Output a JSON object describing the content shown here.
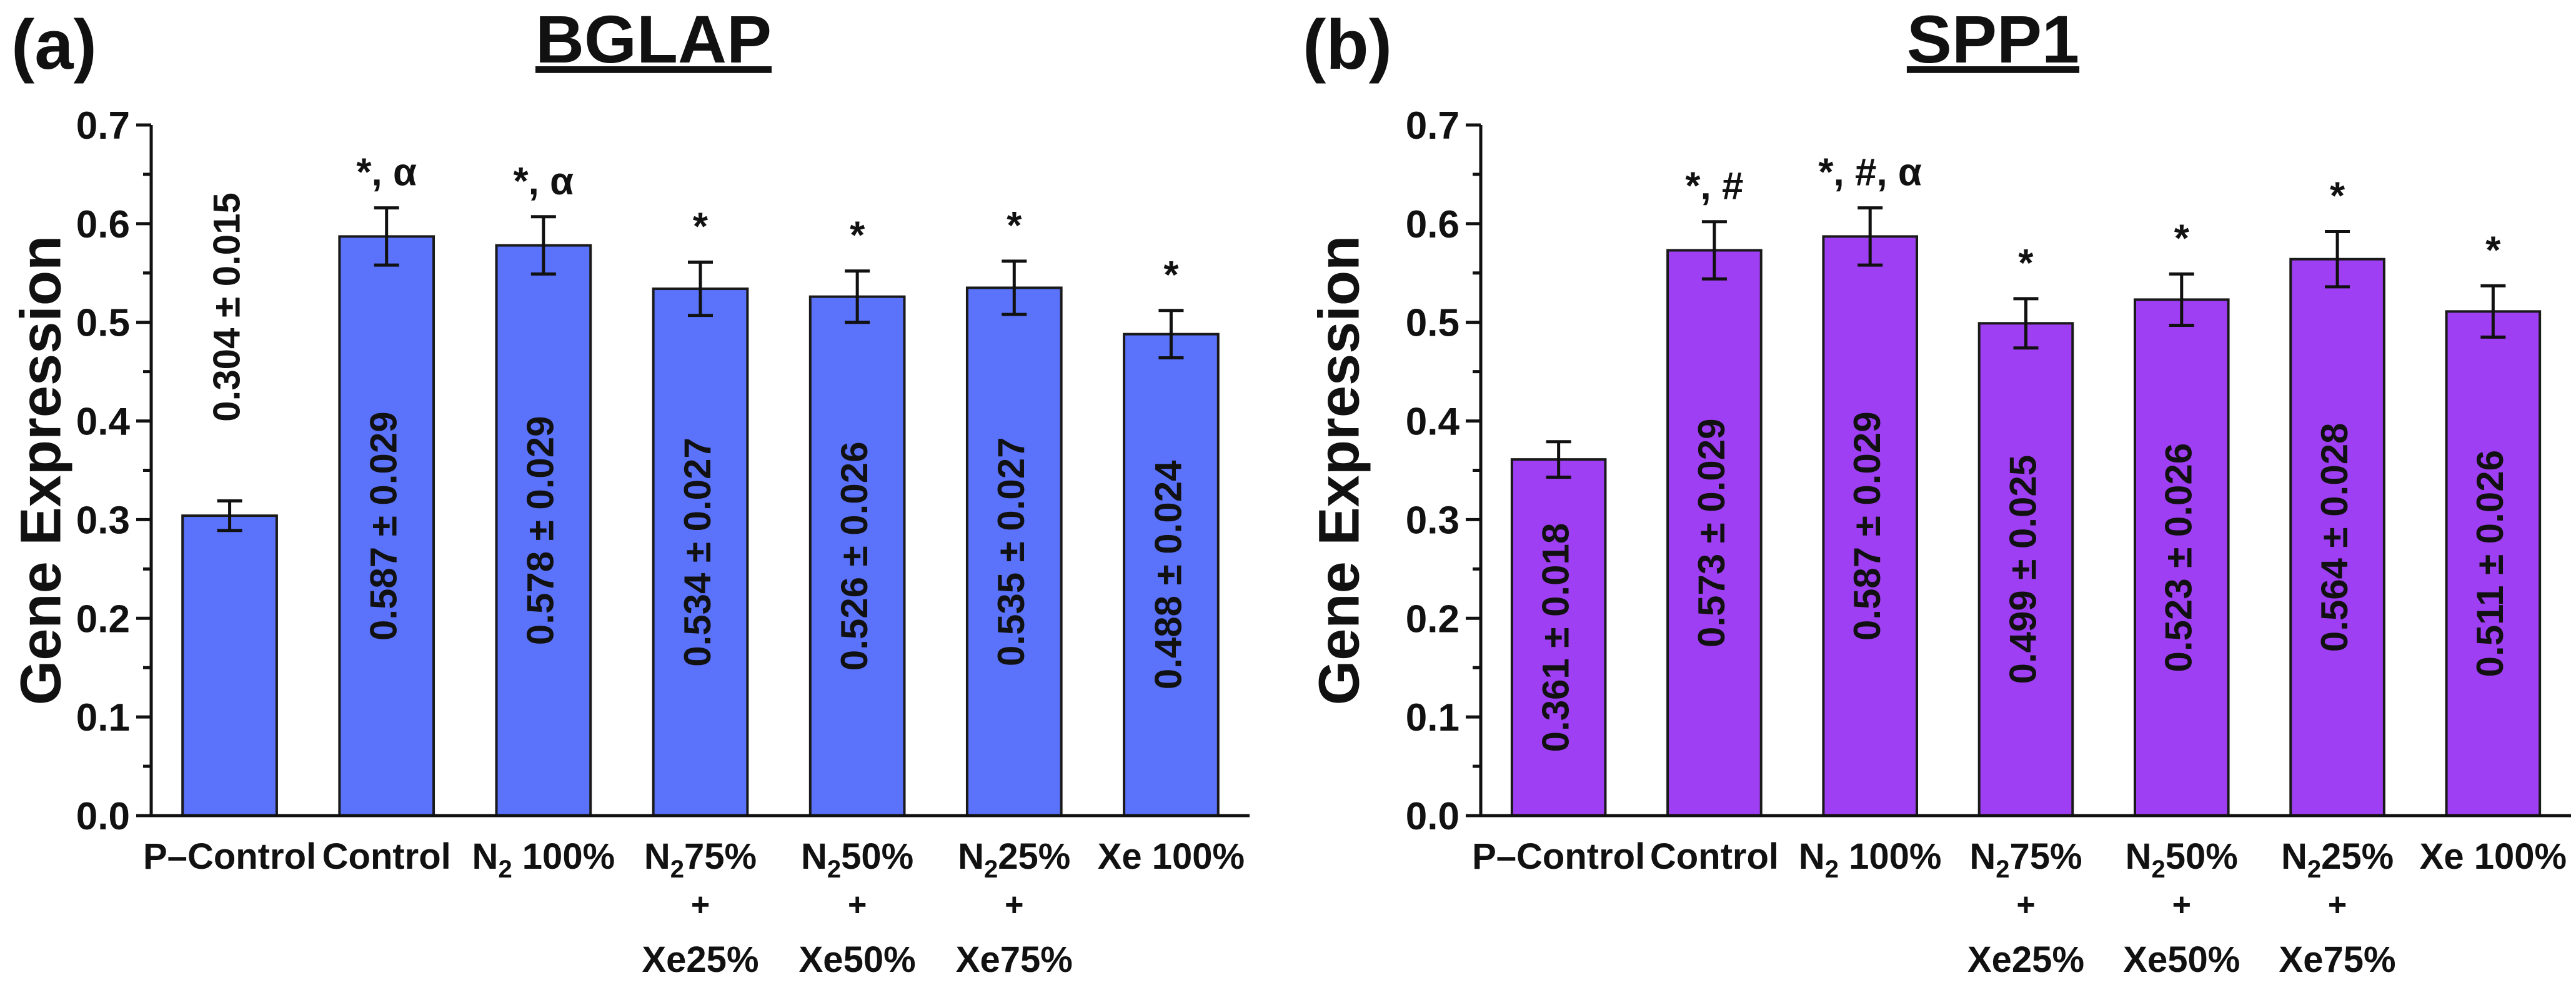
{
  "chart_data": [
    {
      "type": "bar",
      "panel_label": "(a)",
      "title": "BGLAP",
      "ylabel": "Gene Expression",
      "xlabel": "",
      "ylim": [
        0,
        0.7
      ],
      "yticks": [
        "0.0",
        "0.1",
        "0.2",
        "0.3",
        "0.4",
        "0.5",
        "0.6",
        "0.7"
      ],
      "bar_color": "#5b72fb",
      "categories": [
        {
          "main": "P–Control",
          "sub": "",
          "line2": "",
          "line3": ""
        },
        {
          "main": "Control",
          "sub": "",
          "line2": "",
          "line3": ""
        },
        {
          "main": "N",
          "sub": "2",
          "tail": " 100%",
          "line2": "",
          "line3": ""
        },
        {
          "main": "N",
          "sub": "2",
          "tail": "75%",
          "line2": "+",
          "line3": "Xe25%"
        },
        {
          "main": "N",
          "sub": "2",
          "tail": "50%",
          "line2": "+",
          "line3": "Xe50%"
        },
        {
          "main": "N",
          "sub": "2",
          "tail": "25%",
          "line2": "+",
          "line3": "Xe75%"
        },
        {
          "main": "Xe 100%",
          "sub": "",
          "line2": "",
          "line3": ""
        }
      ],
      "values": [
        0.304,
        0.587,
        0.578,
        0.534,
        0.526,
        0.535,
        0.488
      ],
      "errors": [
        0.015,
        0.029,
        0.029,
        0.027,
        0.026,
        0.027,
        0.024
      ],
      "value_labels": [
        "0.304 ± 0.015",
        "0.587 ± 0.029",
        "0.578 ± 0.029",
        "0.534 ± 0.027",
        "0.526 ± 0.026",
        "0.535 ± 0.027",
        "0.488 ± 0.024"
      ],
      "significance": [
        "",
        "*, α",
        "*, α",
        "*",
        "*",
        "*",
        "*"
      ]
    },
    {
      "type": "bar",
      "panel_label": "(b)",
      "title": "SPP1",
      "ylabel": "Gene Expression",
      "xlabel": "",
      "ylim": [
        0,
        0.7
      ],
      "yticks": [
        "0.0",
        "0.1",
        "0.2",
        "0.3",
        "0.4",
        "0.5",
        "0.6",
        "0.7"
      ],
      "bar_color": "#9f3ff3",
      "categories": [
        {
          "main": "P–Control",
          "sub": "",
          "line2": "",
          "line3": ""
        },
        {
          "main": "Control",
          "sub": "",
          "line2": "",
          "line3": ""
        },
        {
          "main": "N",
          "sub": "2",
          "tail": " 100%",
          "line2": "",
          "line3": ""
        },
        {
          "main": "N",
          "sub": "2",
          "tail": "75%",
          "line2": "+",
          "line3": "Xe25%"
        },
        {
          "main": "N",
          "sub": "2",
          "tail": "50%",
          "line2": "+",
          "line3": "Xe50%"
        },
        {
          "main": "N",
          "sub": "2",
          "tail": "25%",
          "line2": "+",
          "line3": "Xe75%"
        },
        {
          "main": "Xe 100%",
          "sub": "",
          "line2": "",
          "line3": ""
        }
      ],
      "values": [
        0.361,
        0.573,
        0.587,
        0.499,
        0.523,
        0.564,
        0.511
      ],
      "errors": [
        0.018,
        0.029,
        0.029,
        0.025,
        0.026,
        0.028,
        0.026
      ],
      "value_labels": [
        "0.361 ± 0.018",
        "0.573 ± 0.029",
        "0.587 ± 0.029",
        "0.499 ± 0.025",
        "0.523 ± 0.026",
        "0.564 ± 0.028",
        "0.511 ± 0.026"
      ],
      "significance": [
        "",
        "*, #",
        "*, #, α",
        "*",
        "*",
        "*",
        "*"
      ]
    }
  ]
}
